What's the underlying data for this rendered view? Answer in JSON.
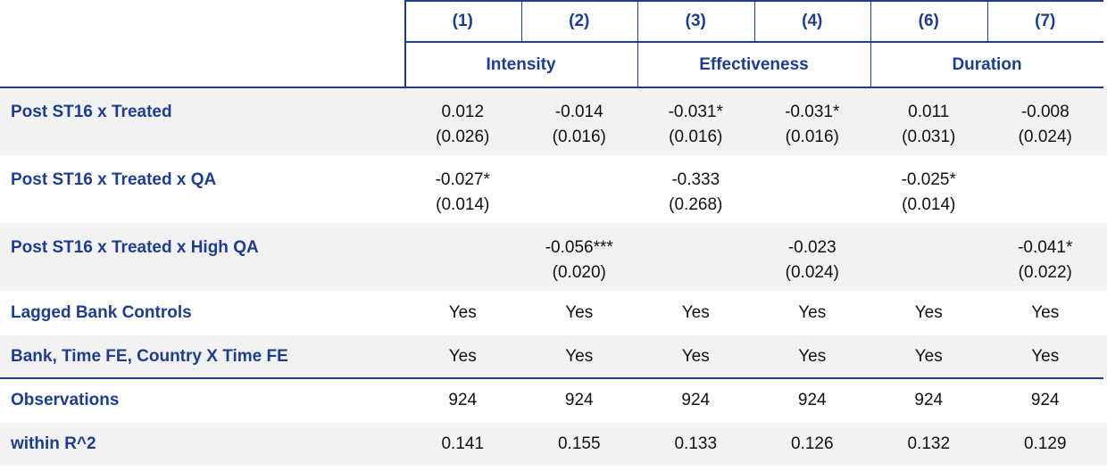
{
  "table": {
    "columns": [
      "(1)",
      "(2)",
      "(3)",
      "(4)",
      "(6)",
      "(7)"
    ],
    "groups": [
      "Intensity",
      "Effectiveness",
      "Duration"
    ],
    "rows": [
      {
        "label": "Post ST16 x Treated",
        "cells": [
          [
            "0.012",
            "(0.026)"
          ],
          [
            "-0.014",
            "(0.016)"
          ],
          [
            "-0.031*",
            "(0.016)"
          ],
          [
            "-0.031*",
            "(0.016)"
          ],
          [
            "0.011",
            "(0.031)"
          ],
          [
            "-0.008",
            "(0.024)"
          ]
        ]
      },
      {
        "label": "Post ST16 x Treated x QA",
        "cells": [
          [
            "-0.027*",
            "(0.014)"
          ],
          null,
          [
            "-0.333",
            "(0.268)"
          ],
          null,
          [
            "-0.025*",
            "(0.014)"
          ],
          null
        ]
      },
      {
        "label": "Post ST16 x Treated x High QA",
        "cells": [
          null,
          [
            "-0.056***",
            "(0.020)"
          ],
          null,
          [
            "-0.023",
            "(0.024)"
          ],
          null,
          [
            "-0.041*",
            "(0.022)"
          ]
        ]
      },
      {
        "label": "Lagged Bank Controls",
        "cells": [
          [
            "Yes"
          ],
          [
            "Yes"
          ],
          [
            "Yes"
          ],
          [
            "Yes"
          ],
          [
            "Yes"
          ],
          [
            "Yes"
          ]
        ]
      },
      {
        "label": "Bank, Time FE, Country X Time FE",
        "cells": [
          [
            "Yes"
          ],
          [
            "Yes"
          ],
          [
            "Yes"
          ],
          [
            "Yes"
          ],
          [
            "Yes"
          ],
          [
            "Yes"
          ]
        ]
      },
      {
        "label": "Observations",
        "cells": [
          [
            "924"
          ],
          [
            "924"
          ],
          [
            "924"
          ],
          [
            "924"
          ],
          [
            "924"
          ],
          [
            "924"
          ]
        ]
      },
      {
        "label": "within R^2",
        "cells": [
          [
            "0.141"
          ],
          [
            "0.155"
          ],
          [
            "0.133"
          ],
          [
            "0.126"
          ],
          [
            "0.132"
          ],
          [
            "0.129"
          ]
        ]
      }
    ]
  }
}
